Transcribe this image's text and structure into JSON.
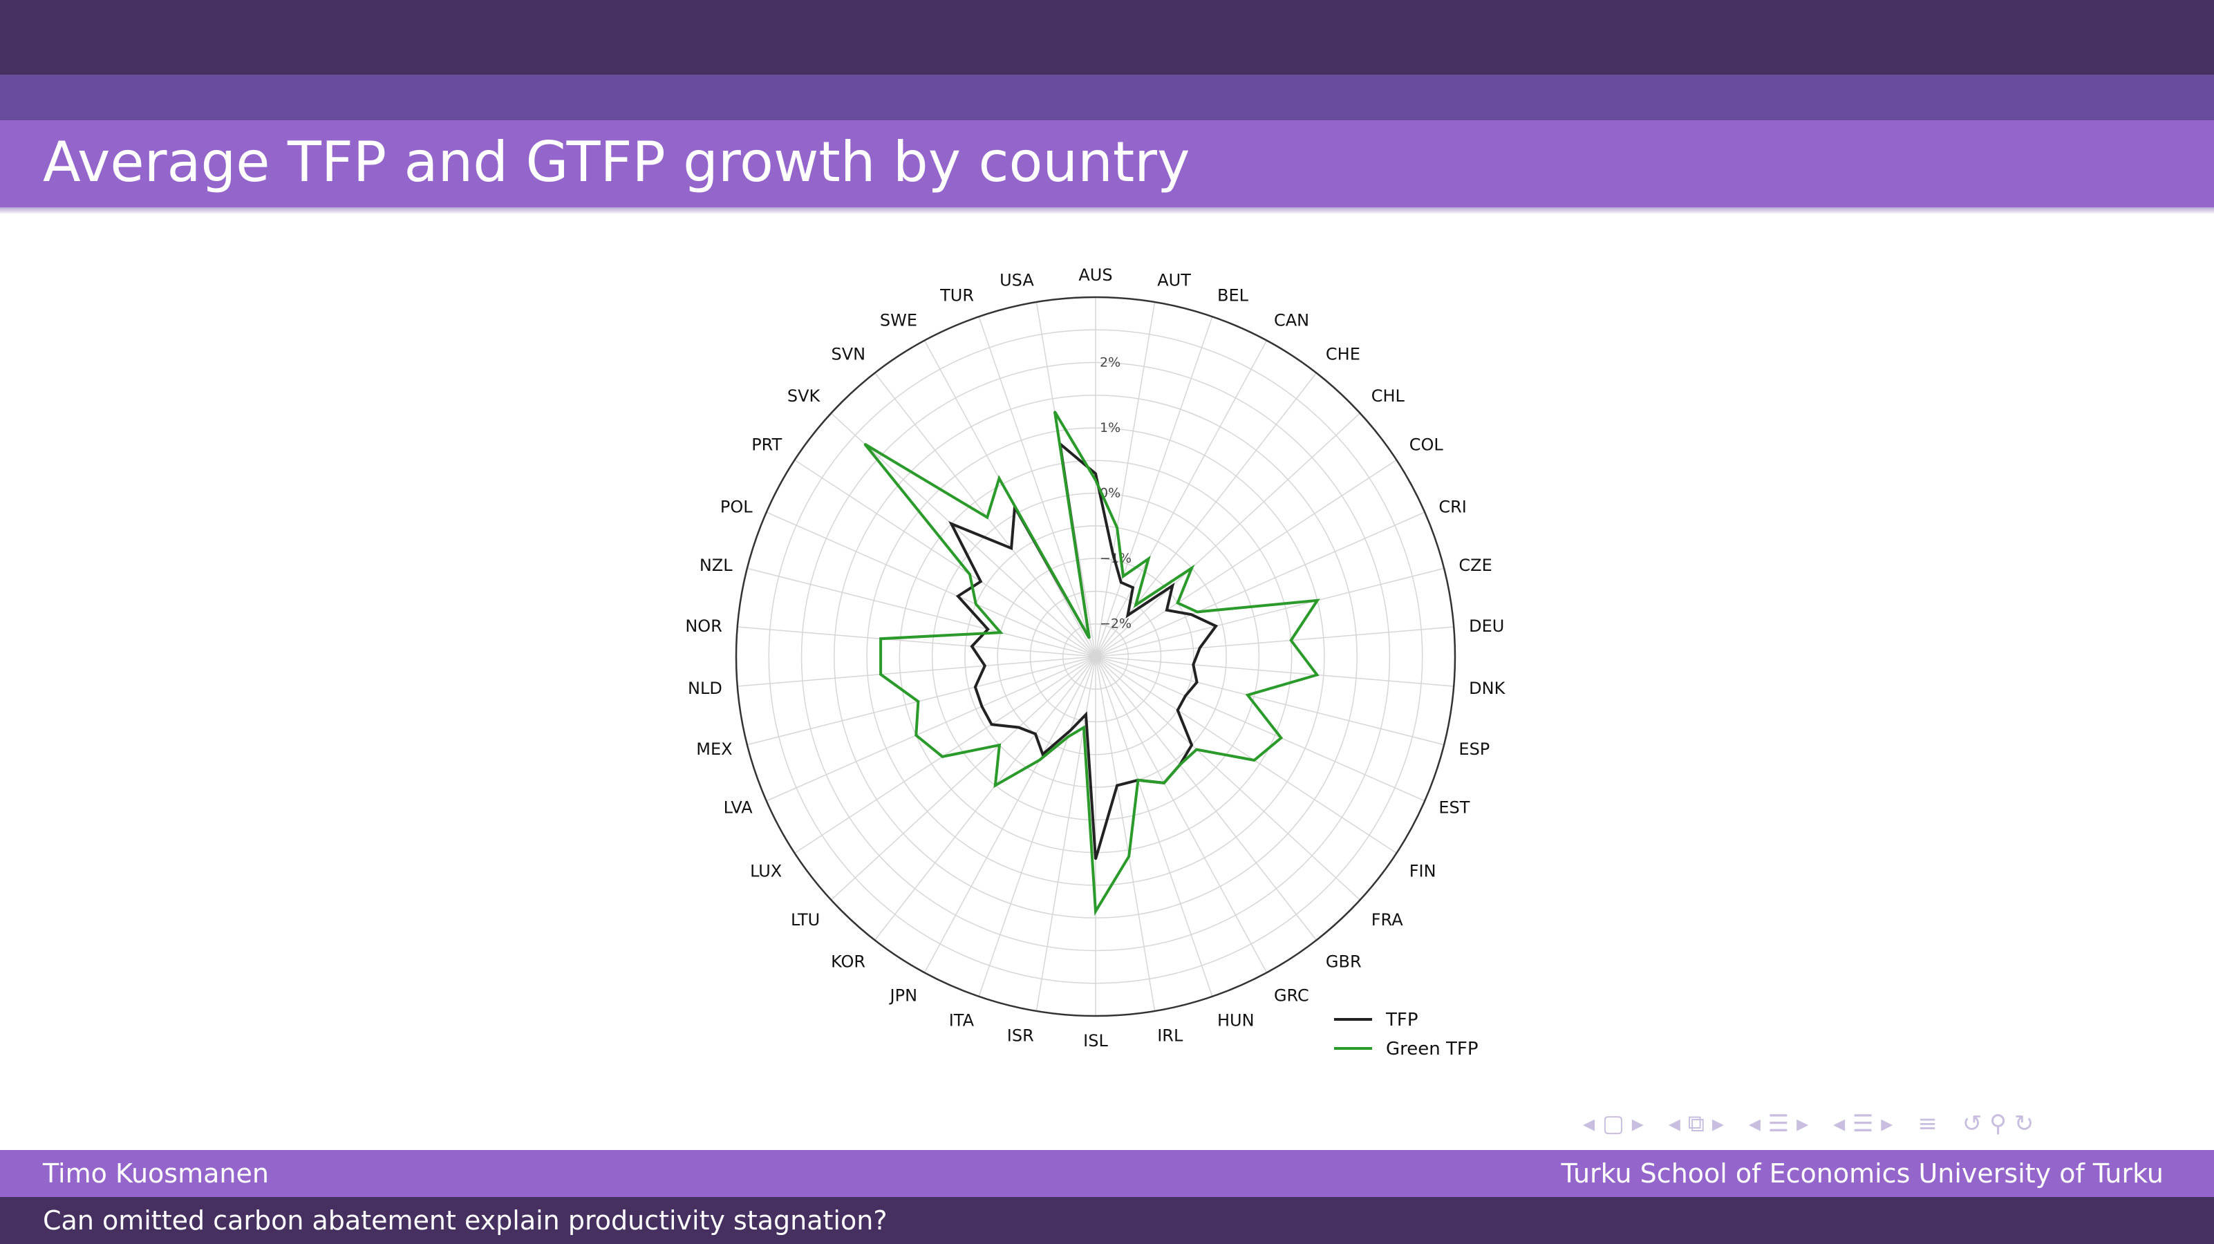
{
  "slide": {
    "title": "Average TFP and GTFP growth by country",
    "author": "Timo Kuosmanen",
    "institution": "Turku School of Economics  University of Turku",
    "talk_title": "Can omitted carbon abatement explain productivity stagnation?"
  },
  "colors": {
    "header_dark": "#45305f",
    "header_mid": "#6a4c9e",
    "title_bar": "#9466cc",
    "tfp": "#222222",
    "green_tfp": "#2a9a2a"
  },
  "nav_icons": [
    "left-arrow-icon",
    "frame-icon",
    "right-arrow-icon",
    "left-arrow-icon",
    "subsection-icon",
    "right-arrow-icon",
    "left-arrow-icon",
    "section-icon",
    "right-arrow-icon",
    "left-arrow-icon",
    "list-icon",
    "right-arrow-icon",
    "align-icon",
    "undo-icon",
    "search-icon",
    "redo-icon"
  ],
  "chart_data": {
    "type": "radar",
    "categories": [
      "AUS",
      "AUT",
      "BEL",
      "CAN",
      "CHE",
      "CHL",
      "COL",
      "CRI",
      "CZE",
      "DEU",
      "DNK",
      "ESP",
      "EST",
      "FIN",
      "FRA",
      "GBR",
      "GRC",
      "HUN",
      "IRL",
      "ISL",
      "ISR",
      "ITA",
      "JPN",
      "KOR",
      "LTU",
      "LUX",
      "LVA",
      "MEX",
      "NLD",
      "NOR",
      "NZL",
      "POL",
      "PRT",
      "SVK",
      "SVN",
      "SWE",
      "TUR",
      "USA"
    ],
    "radial_ticks": [
      "2%",
      "1%",
      "0%",
      "−1%",
      "−2%"
    ],
    "radial_tick_values": [
      2,
      1,
      0,
      -1,
      -2
    ],
    "rlim": [
      -2.5,
      3
    ],
    "grid": true,
    "legend_position": "bottom-right",
    "series": [
      {
        "name": "TFP",
        "values": [
          0.3,
          -0.9,
          -1.3,
          -1.3,
          -1.7,
          -0.9,
          -1.2,
          -0.9,
          -0.6,
          -0.9,
          -1.0,
          -0.9,
          -1.0,
          -1.0,
          -0.5,
          -0.4,
          -0.3,
          -0.5,
          -0.5,
          0.6,
          -1.6,
          -1.3,
          -0.8,
          -1.0,
          -0.9,
          -0.6,
          -0.6,
          -0.6,
          -0.8,
          -0.6,
          -0.8,
          -0.2,
          -0.4,
          0.5,
          -0.4,
          0.1,
          -2.2,
          0.8
        ]
      },
      {
        "name": "Green TFP",
        "values": [
          0.2,
          -0.5,
          -1.2,
          -0.8,
          -1.5,
          -0.5,
          -1.0,
          -0.8,
          1.0,
          0.5,
          0.9,
          -0.1,
          0.6,
          0.4,
          -0.4,
          -0.4,
          -0.3,
          -0.5,
          0.6,
          1.4,
          -1.4,
          -1.2,
          -0.7,
          0.0,
          -0.5,
          0.3,
          0.5,
          0.3,
          0.8,
          0.8,
          -1.0,
          -0.5,
          -0.2,
          2.3,
          0.2,
          0.6,
          -2.2,
          1.3
        ]
      }
    ]
  }
}
